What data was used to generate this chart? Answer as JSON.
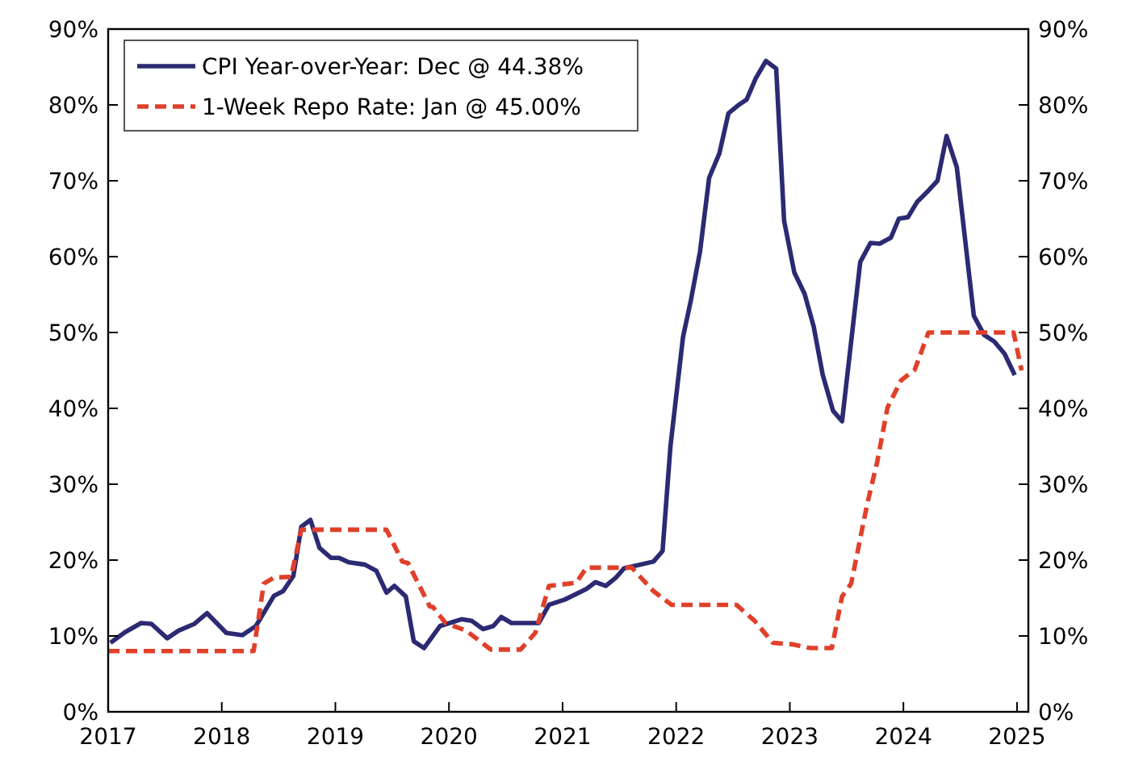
{
  "chart_data": {
    "type": "line",
    "xlim": [
      2017,
      2025.1
    ],
    "xticks": [
      2017,
      2018,
      2019,
      2020,
      2021,
      2022,
      2023,
      2024,
      2025
    ],
    "ylim": [
      0,
      90
    ],
    "yticks": [
      {
        "value": 0,
        "label": "0%"
      },
      {
        "value": 10,
        "label": "10%"
      },
      {
        "value": 20,
        "label": "20%"
      },
      {
        "value": 30,
        "label": "30%"
      },
      {
        "value": 40,
        "label": "40%"
      },
      {
        "value": 50,
        "label": "50%"
      },
      {
        "value": 60,
        "label": "60%"
      },
      {
        "value": 70,
        "label": "70%"
      },
      {
        "value": 80,
        "label": "80%"
      },
      {
        "value": 90,
        "label": "90%"
      }
    ],
    "y2lim": [
      0,
      90
    ],
    "y2ticks": [
      {
        "value": 0,
        "label": "0%"
      },
      {
        "value": 10,
        "label": "10%"
      },
      {
        "value": 20,
        "label": "20%"
      },
      {
        "value": 30,
        "label": "30%"
      },
      {
        "value": 40,
        "label": "40%"
      },
      {
        "value": 50,
        "label": "50%"
      },
      {
        "value": 60,
        "label": "60%"
      },
      {
        "value": 70,
        "label": "70%"
      },
      {
        "value": 80,
        "label": "80%"
      },
      {
        "value": 90,
        "label": "90%"
      }
    ],
    "grid": false,
    "legend": "top left",
    "marker": "none",
    "series": [
      {
        "name": "CPI Year-over-Year: Dec @ 44.38%",
        "color": "#2b2a73",
        "line_style": "solid",
        "x": [
          2017.02,
          2017.15,
          2017.29,
          2017.38,
          2017.52,
          2017.62,
          2017.76,
          2017.87,
          2018.04,
          2018.18,
          2018.3,
          2018.46,
          2018.54,
          2018.63,
          2018.7,
          2018.78,
          2018.86,
          2018.96,
          2019.03,
          2019.12,
          2019.26,
          2019.36,
          2019.45,
          2019.52,
          2019.62,
          2019.69,
          2019.78,
          2019.92,
          2020.11,
          2020.2,
          2020.3,
          2020.39,
          2020.46,
          2020.55,
          2020.79,
          2020.88,
          2021.02,
          2021.21,
          2021.29,
          2021.38,
          2021.47,
          2021.54,
          2021.8,
          2021.88,
          2021.95,
          2022.06,
          2022.13,
          2022.21,
          2022.29,
          2022.38,
          2022.46,
          2022.55,
          2022.62,
          2022.7,
          2022.79,
          2022.88,
          2022.95,
          2023.04,
          2023.13,
          2023.21,
          2023.29,
          2023.38,
          2023.46,
          2023.62,
          2023.71,
          2023.79,
          2023.89,
          2023.96,
          2024.04,
          2024.12,
          2024.22,
          2024.3,
          2024.38,
          2024.47,
          2024.62,
          2024.71,
          2024.8,
          2024.89,
          2024.98
        ],
        "values": [
          9.1,
          10.5,
          11.7,
          11.6,
          9.7,
          10.7,
          11.6,
          13.0,
          10.4,
          10.1,
          11.3,
          15.3,
          15.9,
          17.9,
          24.4,
          25.3,
          21.6,
          20.3,
          20.3,
          19.7,
          19.4,
          18.6,
          15.7,
          16.6,
          15.2,
          9.3,
          8.4,
          11.3,
          12.2,
          12.0,
          10.9,
          11.3,
          12.5,
          11.7,
          11.7,
          14.1,
          14.8,
          16.2,
          17.1,
          16.6,
          17.7,
          18.9,
          19.8,
          21.2,
          35.1,
          49.4,
          54.3,
          60.7,
          70.4,
          73.6,
          78.9,
          80.0,
          80.7,
          83.5,
          85.8,
          84.8,
          64.7,
          57.9,
          55.1,
          50.8,
          44.4,
          39.7,
          38.3,
          59.3,
          61.8,
          61.7,
          62.5,
          65.0,
          65.2,
          67.2,
          68.7,
          70.0,
          75.9,
          71.8,
          52.2,
          49.7,
          48.8,
          47.2,
          44.38
        ]
      },
      {
        "name": "1-Week Repo Rate: Jan @ 45.00%",
        "color": "#e0402a",
        "line_style": "dashed",
        "x": [
          2017.0,
          2018.28,
          2018.37,
          2018.46,
          2018.61,
          2018.7,
          2019.45,
          2019.59,
          2019.64,
          2019.83,
          2019.86,
          2019.97,
          2020.15,
          2020.37,
          2020.63,
          2020.76,
          2020.88,
          2021.12,
          2021.21,
          2021.61,
          2021.8,
          2021.96,
          2022.53,
          2022.69,
          2022.85,
          2023.02,
          2023.18,
          2023.37,
          2023.46,
          2023.54,
          2023.68,
          2023.77,
          2023.86,
          2023.98,
          2024.1,
          2024.22,
          2024.97,
          2025.04
        ],
        "values": [
          8,
          8,
          16.9,
          17.7,
          17.8,
          24,
          24,
          19.8,
          19.6,
          13.9,
          13.8,
          11.7,
          10.7,
          8.2,
          8.2,
          10.4,
          16.6,
          17,
          19,
          19,
          15.9,
          14.1,
          14.1,
          12.0,
          9.1,
          8.9,
          8.4,
          8.4,
          15.2,
          16.9,
          27.3,
          33,
          40.1,
          43.7,
          45.1,
          50,
          50,
          45
        ]
      }
    ]
  }
}
